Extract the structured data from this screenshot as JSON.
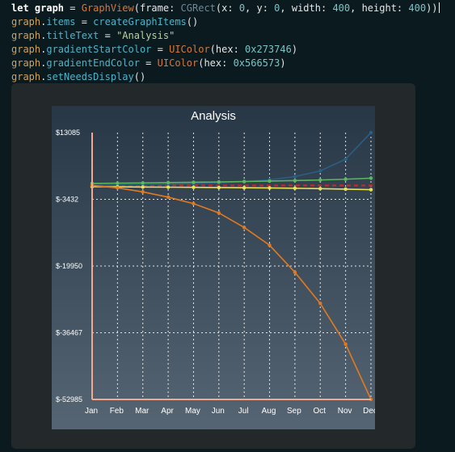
{
  "code": {
    "lines": [
      [
        {
          "t": "let ",
          "c": "kw"
        },
        {
          "t": "graph",
          "c": "id"
        },
        {
          "t": " = ",
          "c": "plain"
        },
        {
          "t": "GraphView",
          "c": "type"
        },
        {
          "t": "(frame: ",
          "c": "plain"
        },
        {
          "t": "CGRect",
          "c": "dim"
        },
        {
          "t": "(x: ",
          "c": "plain"
        },
        {
          "t": "0",
          "c": "num"
        },
        {
          "t": ", y: ",
          "c": "plain"
        },
        {
          "t": "0",
          "c": "num"
        },
        {
          "t": ", width: ",
          "c": "plain"
        },
        {
          "t": "400",
          "c": "num"
        },
        {
          "t": ", height: ",
          "c": "plain"
        },
        {
          "t": "400",
          "c": "num"
        },
        {
          "t": "))",
          "c": "plain"
        }
      ],
      [
        {
          "t": "graph",
          "c": "var"
        },
        {
          "t": ".",
          "c": "plain"
        },
        {
          "t": "items",
          "c": "prop"
        },
        {
          "t": " = ",
          "c": "plain"
        },
        {
          "t": "createGraphItems",
          "c": "prop"
        },
        {
          "t": "()",
          "c": "plain"
        }
      ],
      [
        {
          "t": "graph",
          "c": "var"
        },
        {
          "t": ".",
          "c": "plain"
        },
        {
          "t": "titleText",
          "c": "prop"
        },
        {
          "t": " = ",
          "c": "plain"
        },
        {
          "t": "\"Analysis\"",
          "c": "str"
        }
      ],
      [
        {
          "t": "graph",
          "c": "var"
        },
        {
          "t": ".",
          "c": "plain"
        },
        {
          "t": "gradientStartColor",
          "c": "prop"
        },
        {
          "t": " = ",
          "c": "plain"
        },
        {
          "t": "UIColor",
          "c": "type"
        },
        {
          "t": "(hex: ",
          "c": "plain"
        },
        {
          "t": "0x273746",
          "c": "num"
        },
        {
          "t": ")",
          "c": "plain"
        }
      ],
      [
        {
          "t": "graph",
          "c": "var"
        },
        {
          "t": ".",
          "c": "plain"
        },
        {
          "t": "gradientEndColor",
          "c": "prop"
        },
        {
          "t": " = ",
          "c": "plain"
        },
        {
          "t": "UIColor",
          "c": "type"
        },
        {
          "t": "(hex: ",
          "c": "plain"
        },
        {
          "t": "0x566573",
          "c": "num"
        },
        {
          "t": ")",
          "c": "plain"
        }
      ],
      [
        {
          "t": "graph",
          "c": "var"
        },
        {
          "t": ".",
          "c": "plain"
        },
        {
          "t": "setNeedsDisplay",
          "c": "prop"
        },
        {
          "t": "()",
          "c": "plain"
        }
      ]
    ]
  },
  "colors": {
    "gradient_start": "#273746",
    "gradient_end": "#566573",
    "axis": "#f4a98e",
    "grid": "#ffffff",
    "threshold_line": "#e02020"
  },
  "chart_data": {
    "type": "line",
    "title": "Analysis",
    "xlabel": "",
    "ylabel": "",
    "categories": [
      "Jan",
      "Feb",
      "Mar",
      "Apr",
      "May",
      "Jun",
      "Jul",
      "Aug",
      "Sep",
      "Oct",
      "Nov",
      "Dec"
    ],
    "ytick_labels": [
      "$13085",
      "$-3432",
      "$-19950",
      "$-36467",
      "$-52985"
    ],
    "ylim": [
      -52985,
      13085
    ],
    "grid": true,
    "threshold": 0,
    "series": [
      {
        "color": "#2a5f86",
        "values": [
          0,
          100,
          200,
          300,
          450,
          650,
          950,
          1400,
          2200,
          3600,
          6500,
          13085
        ]
      },
      {
        "color": "#5cb85c",
        "values": [
          500,
          550,
          620,
          700,
          780,
          870,
          970,
          1080,
          1200,
          1350,
          1550,
          1800
        ]
      },
      {
        "color": "#e8e255",
        "values": [
          -300,
          -350,
          -390,
          -430,
          -470,
          -510,
          -560,
          -620,
          -700,
          -800,
          -920,
          -1050
        ]
      },
      {
        "color": "#e07a22",
        "values": [
          0,
          -600,
          -1600,
          -2900,
          -4500,
          -6800,
          -10400,
          -14800,
          -21500,
          -29200,
          -39300,
          -52985
        ]
      }
    ]
  }
}
